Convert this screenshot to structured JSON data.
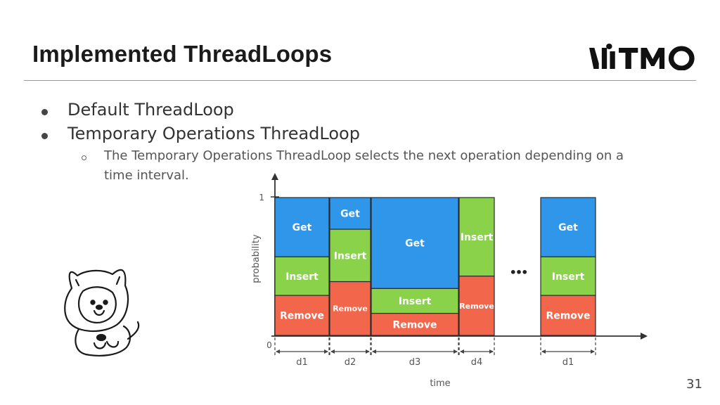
{
  "header": {
    "title": "Implemented ThreadLoops",
    "logo_text": "ITMO"
  },
  "bullets": [
    {
      "text": "Default ThreadLoop"
    },
    {
      "text": "Temporary Operations ThreadLoop"
    }
  ],
  "sub_bullet": {
    "line1": "The Temporary Operations ThreadLoop selects the next operation depending on a",
    "line2": "time interval."
  },
  "page_number": "31",
  "colors": {
    "get": "#2f96ea",
    "insert": "#8ad24a",
    "remove": "#f2664c",
    "axis": "#333333"
  },
  "diagram": {
    "y_axis_label": "probability",
    "x_axis_label": "time",
    "y_top_tick": "1",
    "y_zero": "0",
    "ellipsis": "•••",
    "segments": [
      {
        "duration_label": "d1",
        "get": "Get",
        "insert": "Insert",
        "remove": "Remove",
        "p_get": 0.43,
        "p_insert": 0.28,
        "p_remove": 0.29
      },
      {
        "duration_label": "d2",
        "get": "Get",
        "insert": "Insert",
        "remove": "Remove",
        "p_get": 0.23,
        "p_insert": 0.38,
        "p_remove": 0.39
      },
      {
        "duration_label": "d3",
        "get": "Get",
        "insert": "Insert",
        "remove": "Remove",
        "p_get": 0.66,
        "p_insert": 0.18,
        "p_remove": 0.16
      },
      {
        "duration_label": "d4",
        "get": "",
        "insert": "Insert",
        "remove": "Remove",
        "p_get": 0.0,
        "p_insert": 0.57,
        "p_remove": 0.43
      },
      {
        "duration_label": "d1",
        "get": "Get",
        "insert": "Insert",
        "remove": "Remove",
        "p_get": 0.43,
        "p_insert": 0.28,
        "p_remove": 0.29
      }
    ]
  }
}
